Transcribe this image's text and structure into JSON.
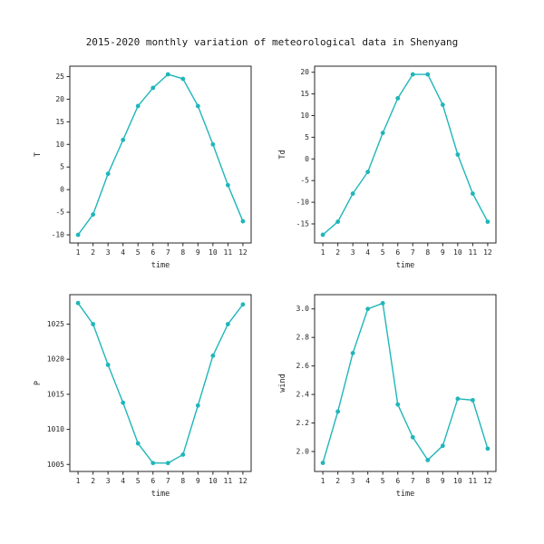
{
  "page": {
    "title": "2015-2020 monthly variation of meteorological data in Shenyang",
    "background": "#ffffff",
    "accent_color": "#1fb6ba",
    "axis_color": "#262626"
  },
  "chart_data": [
    {
      "type": "line",
      "name": "temperature",
      "title": "",
      "xlabel": "time",
      "ylabel": "T",
      "x": [
        1,
        2,
        3,
        4,
        5,
        6,
        7,
        8,
        9,
        10,
        11,
        12
      ],
      "xtick_labels": [
        "1",
        "2",
        "3",
        "4",
        "5",
        "6",
        "7",
        "8",
        "9",
        "10",
        "11",
        "12"
      ],
      "values": [
        -10,
        -5.5,
        3.5,
        11,
        18.5,
        22.5,
        25.5,
        24.5,
        18.5,
        10,
        1,
        -7
      ],
      "yticks": [
        -10,
        -5,
        0,
        5,
        10,
        15,
        20,
        25
      ],
      "ytick_labels": [
        "-10",
        "-5",
        "0",
        "5",
        "10",
        "15",
        "20",
        "25"
      ],
      "ylim": [
        -11.8,
        27.3
      ],
      "xlim": [
        0.45,
        12.55
      ],
      "grid": false,
      "legend": "none"
    },
    {
      "type": "line",
      "name": "dew-point",
      "title": "",
      "xlabel": "time",
      "ylabel": "Td",
      "x": [
        1,
        2,
        3,
        4,
        5,
        6,
        7,
        8,
        9,
        10,
        11,
        12
      ],
      "xtick_labels": [
        "1",
        "2",
        "3",
        "4",
        "5",
        "6",
        "7",
        "8",
        "9",
        "10",
        "11",
        "12"
      ],
      "values": [
        -17.5,
        -14.5,
        -8,
        -3,
        6,
        14,
        19.5,
        19.5,
        12.5,
        1,
        -8,
        -14.5
      ],
      "yticks": [
        -15,
        -10,
        -5,
        0,
        5,
        10,
        15,
        20
      ],
      "ytick_labels": [
        "-15",
        "-10",
        "-5",
        "0",
        "5",
        "10",
        "15",
        "20"
      ],
      "ylim": [
        -19.4,
        21.4
      ],
      "xlim": [
        0.45,
        12.55
      ],
      "grid": false,
      "legend": "none"
    },
    {
      "type": "line",
      "name": "pressure",
      "title": "",
      "xlabel": "time",
      "ylabel": "P",
      "x": [
        1,
        2,
        3,
        4,
        5,
        6,
        7,
        8,
        9,
        10,
        11,
        12
      ],
      "xtick_labels": [
        "1",
        "2",
        "3",
        "4",
        "5",
        "6",
        "7",
        "8",
        "9",
        "10",
        "11",
        "12"
      ],
      "values": [
        1028,
        1025,
        1019.2,
        1013.8,
        1008,
        1005.2,
        1005.2,
        1006.4,
        1013.4,
        1020.5,
        1025,
        1027.8
      ],
      "yticks": [
        1005,
        1010,
        1015,
        1020,
        1025
      ],
      "ytick_labels": [
        "1005",
        "1010",
        "1015",
        "1020",
        "1025"
      ],
      "ylim": [
        1004.0,
        1029.2
      ],
      "xlim": [
        0.45,
        12.55
      ],
      "grid": false,
      "legend": "none"
    },
    {
      "type": "line",
      "name": "wind",
      "title": "",
      "xlabel": "time",
      "ylabel": "wind",
      "x": [
        1,
        2,
        3,
        4,
        5,
        6,
        7,
        8,
        9,
        10,
        11,
        12
      ],
      "xtick_labels": [
        "1",
        "2",
        "3",
        "4",
        "5",
        "6",
        "7",
        "8",
        "9",
        "10",
        "11",
        "12"
      ],
      "values": [
        1.92,
        2.28,
        2.69,
        3.0,
        3.04,
        2.33,
        2.1,
        1.94,
        2.04,
        2.37,
        2.36,
        2.02
      ],
      "yticks": [
        2.0,
        2.2,
        2.4,
        2.6,
        2.8,
        3.0
      ],
      "ytick_labels": [
        "2.0",
        "2.2",
        "2.4",
        "2.6",
        "2.8",
        "3.0"
      ],
      "ylim": [
        1.86,
        3.1
      ],
      "xlim": [
        0.45,
        12.55
      ],
      "grid": false,
      "legend": "none"
    }
  ]
}
